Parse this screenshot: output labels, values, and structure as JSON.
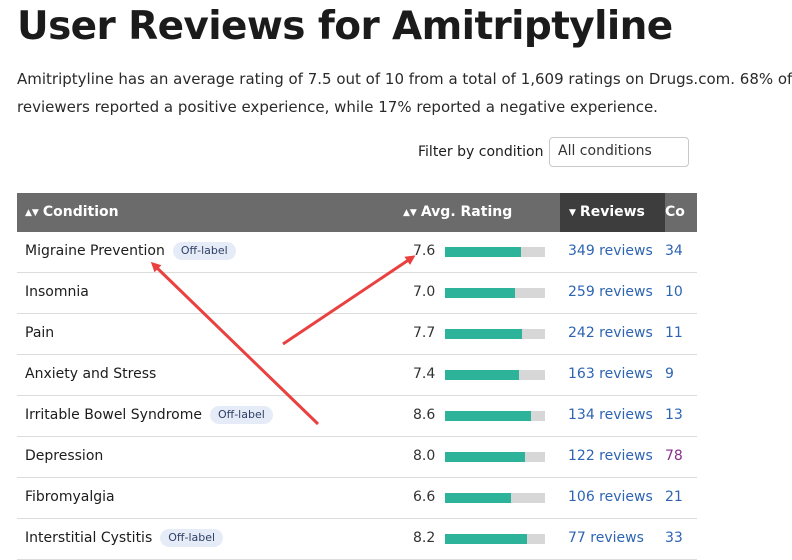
{
  "page": {
    "title": "User Reviews for Amitriptyline",
    "intro_line1": "Amitriptyline has an average rating of 7.5 out of 10 from a total of 1,609 ratings on Drugs.com. 68% of",
    "intro_line2": "reviewers reported a positive experience, while 17% reported a negative experience."
  },
  "filter": {
    "label": "Filter by condition",
    "selected": "All conditions"
  },
  "table": {
    "headers": {
      "condition": "Condition",
      "rating": "Avg. Rating",
      "reviews": "Reviews",
      "extra": "Co"
    },
    "rows": [
      {
        "condition": "Migraine Prevention",
        "badge": "Off-label",
        "rating": "7.6",
        "reviews": "349 reviews",
        "extra": "34"
      },
      {
        "condition": "Insomnia",
        "badge": "",
        "rating": "7.0",
        "reviews": "259 reviews",
        "extra": "10"
      },
      {
        "condition": "Pain",
        "badge": "",
        "rating": "7.7",
        "reviews": "242 reviews",
        "extra": "11"
      },
      {
        "condition": "Anxiety and Stress",
        "badge": "",
        "rating": "7.4",
        "reviews": "163 reviews",
        "extra": "9"
      },
      {
        "condition": "Irritable Bowel Syndrome",
        "badge": "Off-label",
        "rating": "8.6",
        "reviews": "134 reviews",
        "extra": "13"
      },
      {
        "condition": "Depression",
        "badge": "",
        "rating": "8.0",
        "reviews": "122 reviews",
        "extra": "78"
      },
      {
        "condition": "Fibromyalgia",
        "badge": "",
        "rating": "6.6",
        "reviews": "106 reviews",
        "extra": "21"
      },
      {
        "condition": "Interstitial Cystitis",
        "badge": "Off-label",
        "rating": "8.2",
        "reviews": "77 reviews",
        "extra": "33"
      }
    ]
  },
  "colors": {
    "header_bg": "#6b6b6b",
    "header_active_bg": "#3d3d3d",
    "bar_fill": "#2db399",
    "bar_track": "#d7d7d7",
    "link": "#2d64b3",
    "annotation_arrow": "#e8413f"
  },
  "icons": {
    "sort": "sort-updown-icon",
    "sort_active": "sort-down-icon"
  }
}
